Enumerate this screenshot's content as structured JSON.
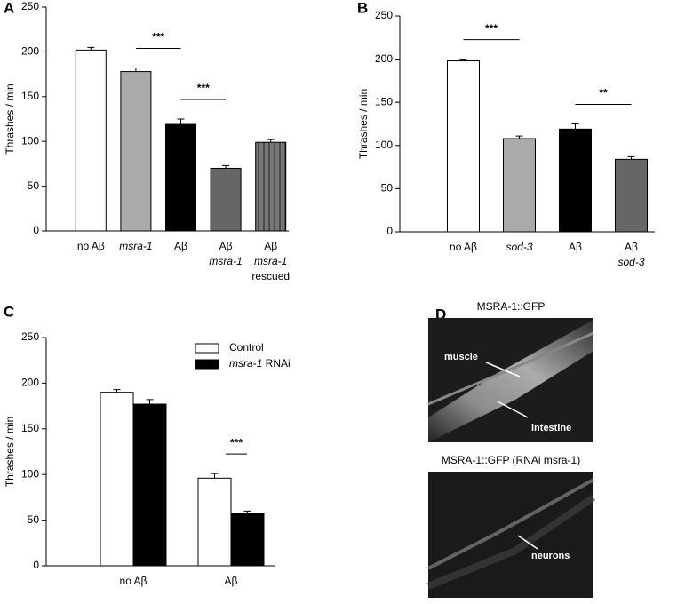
{
  "chart_data": [
    {
      "type": "bar",
      "label": "A",
      "ylabel": "Thrashes / min",
      "categories": [
        [
          "no Aβ"
        ],
        [
          "msra-1"
        ],
        [
          "Aβ"
        ],
        [
          "Aβ",
          "msra-1"
        ],
        [
          "Aβ",
          "msra-1",
          "rescued"
        ]
      ],
      "values": [
        202,
        178,
        119,
        70,
        99
      ],
      "errors": [
        3,
        4,
        6,
        3,
        3
      ],
      "colors": [
        "#ffffff",
        "#aaaaaa",
        "#000000",
        "#666666",
        "#777777"
      ],
      "ylim": [
        0,
        250
      ],
      "yticks": [
        0,
        50,
        100,
        150,
        200,
        250
      ],
      "annotations": [
        {
          "text": "***",
          "span": [
            1,
            2
          ]
        },
        {
          "text": "***",
          "span": [
            2,
            3
          ]
        }
      ]
    },
    {
      "type": "bar",
      "label": "B",
      "ylabel": "Thrashes / min",
      "categories": [
        [
          "no Aβ"
        ],
        [
          "sod-3"
        ],
        [
          "Aβ"
        ],
        [
          "Aβ",
          "sod-3"
        ]
      ],
      "values": [
        198,
        108,
        119,
        84
      ],
      "errors": [
        2,
        3,
        6,
        3
      ],
      "colors": [
        "#ffffff",
        "#aaaaaa",
        "#000000",
        "#666666"
      ],
      "ylim": [
        0,
        250
      ],
      "yticks": [
        0,
        50,
        100,
        150,
        200,
        250
      ],
      "annotations": [
        {
          "text": "***",
          "span": [
            0,
            1
          ]
        },
        {
          "text": "**",
          "span": [
            2,
            3
          ]
        }
      ]
    },
    {
      "type": "grouped-bar",
      "label": "C",
      "ylabel": "Thrashes / min",
      "categories": [
        [
          "no Aβ"
        ],
        [
          "Aβ"
        ]
      ],
      "series": [
        {
          "name": "Control",
          "color": "#ffffff",
          "values": [
            190,
            96
          ],
          "errors": [
            3,
            5
          ]
        },
        {
          "name": "msra-1 RNAi",
          "color": "#000000",
          "values": [
            177,
            57
          ],
          "errors": [
            5,
            3
          ]
        }
      ],
      "ylim": [
        0,
        250
      ],
      "yticks": [
        0,
        50,
        100,
        150,
        200,
        250
      ],
      "annotations": [
        {
          "text": "***",
          "span": [
            1,
            1
          ]
        }
      ]
    }
  ],
  "panel_d": {
    "label": "D",
    "images": [
      {
        "title": "MSRA-1::GFP",
        "labels": [
          "muscle",
          "intestine"
        ]
      },
      {
        "title": "MSRA-1::GFP (RNAi msra-1)",
        "labels": [
          "neurons"
        ]
      }
    ]
  }
}
